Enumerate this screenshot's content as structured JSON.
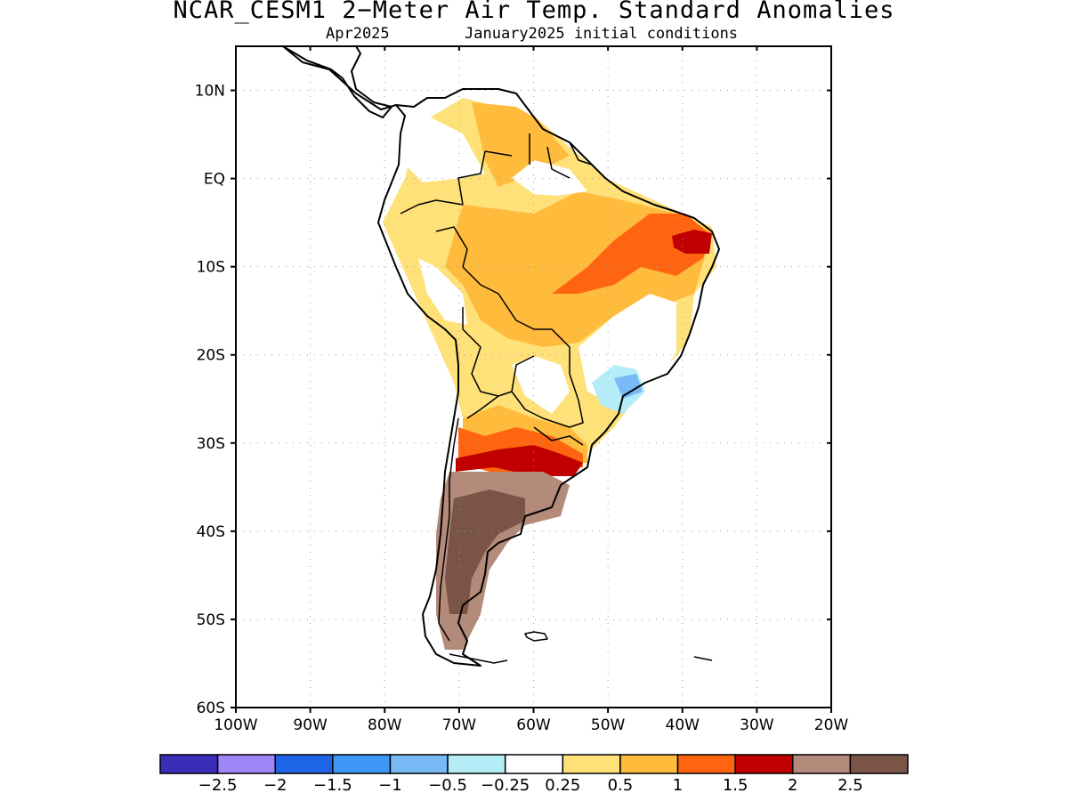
{
  "title": "NCAR_CESM1 2−Meter Air Temp. Standard Anomalies",
  "subtitle_left": "Apr2025",
  "subtitle_right": "January2025 initial conditions",
  "map": {
    "region": "South America",
    "lon_range": [
      -100,
      -20
    ],
    "lat_range": [
      -60,
      15
    ],
    "lat_ticks": [
      {
        "value": 10,
        "label": "10N"
      },
      {
        "value": 0,
        "label": "EQ"
      },
      {
        "value": -10,
        "label": "10S"
      },
      {
        "value": -20,
        "label": "20S"
      },
      {
        "value": -30,
        "label": "30S"
      },
      {
        "value": -40,
        "label": "40S"
      },
      {
        "value": -50,
        "label": "50S"
      },
      {
        "value": -60,
        "label": "60S"
      }
    ],
    "lon_ticks": [
      {
        "value": -100,
        "label": "100W"
      },
      {
        "value": -90,
        "label": "90W"
      },
      {
        "value": -80,
        "label": "80W"
      },
      {
        "value": -70,
        "label": "70W"
      },
      {
        "value": -60,
        "label": "60W"
      },
      {
        "value": -50,
        "label": "50W"
      },
      {
        "value": -40,
        "label": "40W"
      },
      {
        "value": -30,
        "label": "30W"
      },
      {
        "value": -20,
        "label": "20W"
      }
    ],
    "grid": "dotted"
  },
  "colorbar": {
    "colors": [
      "#3a2db8",
      "#9f86f8",
      "#1e64e6",
      "#3c96f5",
      "#78b9f8",
      "#b4ecf8",
      "#ffffff",
      "#ffe17a",
      "#ffbb3c",
      "#ff6410",
      "#c00000",
      "#b48a7a",
      "#7a5446"
    ],
    "labels": [
      "−2.5",
      "−2",
      "−1.5",
      "−1",
      "−0.5",
      "−0.25",
      "0.25",
      "0.5",
      "1",
      "1.5",
      "2",
      "2.5"
    ]
  }
}
